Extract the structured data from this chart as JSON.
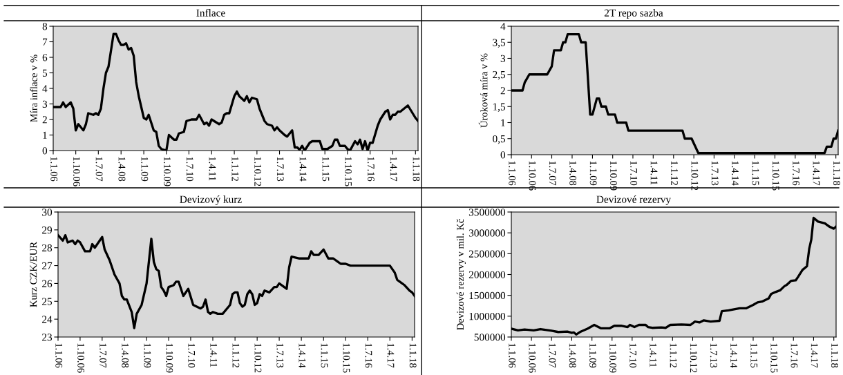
{
  "chart_data": [
    {
      "type": "line",
      "title": "Inflace",
      "ylabel": "Míra inflace v %",
      "xlim": [
        "2006-01",
        "2018-02"
      ],
      "xticks": [
        {
          "value": "2006-01",
          "label": "1.1.06"
        },
        {
          "value": "2006-10",
          "label": "1.10.06"
        },
        {
          "value": "2007-07",
          "label": "1.7.07"
        },
        {
          "value": "2008-04",
          "label": "1.4.08"
        },
        {
          "value": "2009-01",
          "label": "1.1.09"
        },
        {
          "value": "2009-10",
          "label": "1.10.09"
        },
        {
          "value": "2010-07",
          "label": "1.7.10"
        },
        {
          "value": "2011-04",
          "label": "1.4.11"
        },
        {
          "value": "2012-01",
          "label": "1.1.12"
        },
        {
          "value": "2012-10",
          "label": "1.10.12"
        },
        {
          "value": "2013-07",
          "label": "1.7.13"
        },
        {
          "value": "2014-04",
          "label": "1.4.14"
        },
        {
          "value": "2015-01",
          "label": "1.1.15"
        },
        {
          "value": "2015-10",
          "label": "1.10.15"
        },
        {
          "value": "2016-07",
          "label": "1.7.16"
        },
        {
          "value": "2017-04",
          "label": "1.4.17"
        },
        {
          "value": "2018-01",
          "label": "1.1.18"
        }
      ],
      "ylim": [
        0,
        8
      ],
      "yticks": [
        0,
        1,
        2,
        3,
        4,
        5,
        6,
        7,
        8
      ],
      "series": [
        {
          "color": "#000000",
          "x": [
            "2006-01",
            "2006-04",
            "2006-05",
            "2006-06",
            "2006-08",
            "2006-09",
            "2006-10",
            "2006-11",
            "2007-01",
            "2007-02",
            "2007-03",
            "2007-05",
            "2007-06",
            "2007-07",
            "2007-08",
            "2007-09",
            "2007-10",
            "2007-11",
            "2008-01",
            "2008-02",
            "2008-03",
            "2008-04",
            "2008-05",
            "2008-06",
            "2008-07",
            "2008-08",
            "2008-09",
            "2008-10",
            "2008-11",
            "2009-01",
            "2009-02",
            "2009-03",
            "2009-05",
            "2009-06",
            "2009-07",
            "2009-08",
            "2009-10",
            "2009-11",
            "2010-01",
            "2010-02",
            "2010-03",
            "2010-05",
            "2010-06",
            "2010-08",
            "2010-10",
            "2010-11",
            "2011-01",
            "2011-02",
            "2011-03",
            "2011-04",
            "2011-07",
            "2011-08",
            "2011-09",
            "2011-10",
            "2011-11",
            "2012-01",
            "2012-02",
            "2012-03",
            "2012-05",
            "2012-06",
            "2012-07",
            "2012-08",
            "2012-10",
            "2012-11",
            "2013-01",
            "2013-02",
            "2013-04",
            "2013-05",
            "2013-06",
            "2013-07",
            "2013-09",
            "2013-10",
            "2013-12",
            "2014-01",
            "2014-02",
            "2014-03",
            "2014-04",
            "2014-05",
            "2014-07",
            "2014-08",
            "2014-10",
            "2014-11",
            "2014-12",
            "2015-02",
            "2015-04",
            "2015-05",
            "2015-06",
            "2015-07",
            "2015-09",
            "2015-10",
            "2015-11",
            "2016-01",
            "2016-02",
            "2016-03",
            "2016-04",
            "2016-05",
            "2016-06",
            "2016-07",
            "2016-08",
            "2016-10",
            "2016-11",
            "2017-01",
            "2017-02",
            "2017-03",
            "2017-04",
            "2017-05",
            "2017-06",
            "2017-07",
            "2017-10",
            "2018-01",
            "2018-02"
          ],
          "values": [
            2.8,
            2.8,
            3.1,
            2.8,
            3.1,
            2.7,
            1.3,
            1.7,
            1.3,
            1.7,
            2.4,
            2.3,
            2.4,
            2.3,
            2.7,
            4.0,
            5.0,
            5.4,
            7.5,
            7.5,
            7.1,
            6.8,
            6.8,
            6.9,
            6.5,
            6.6,
            6.1,
            4.4,
            3.5,
            2.1,
            2.0,
            2.3,
            1.3,
            1.2,
            0.3,
            0.1,
            0.0,
            1.0,
            0.7,
            0.7,
            1.1,
            1.2,
            1.9,
            2.0,
            2.0,
            2.3,
            1.7,
            1.8,
            1.6,
            2.0,
            1.7,
            1.8,
            2.3,
            2.4,
            2.4,
            3.5,
            3.8,
            3.5,
            3.2,
            3.5,
            3.1,
            3.4,
            3.3,
            2.7,
            1.9,
            1.7,
            1.6,
            1.3,
            1.5,
            1.3,
            1.0,
            0.9,
            1.3,
            0.2,
            0.2,
            0.05,
            0.3,
            0.0,
            0.5,
            0.6,
            0.6,
            0.6,
            0.1,
            0.1,
            0.3,
            0.7,
            0.7,
            0.3,
            0.3,
            0.1,
            0.0,
            0.6,
            0.4,
            0.7,
            0.1,
            0.6,
            0.0,
            0.5,
            0.5,
            1.6,
            2.0,
            2.5,
            2.6,
            2.0,
            2.3,
            2.3,
            2.5,
            2.5,
            2.9,
            2.1,
            1.9
          ]
        }
      ]
    },
    {
      "type": "line",
      "title": "2T repo sazba",
      "ylabel": "Úroková míra v %",
      "xlim": [
        "2006-01",
        "2018-02"
      ],
      "xticks": [
        {
          "value": "2006-01",
          "label": "1.1.06"
        },
        {
          "value": "2006-10",
          "label": "1.10.06"
        },
        {
          "value": "2007-07",
          "label": "1.7.07"
        },
        {
          "value": "2008-04",
          "label": "1.4.08"
        },
        {
          "value": "2009-01",
          "label": "1.1.09"
        },
        {
          "value": "2009-10",
          "label": "1.10.09"
        },
        {
          "value": "2010-07",
          "label": "1.7.10"
        },
        {
          "value": "2011-04",
          "label": "1.4.11"
        },
        {
          "value": "2012-01",
          "label": "1.1.12"
        },
        {
          "value": "2012-10",
          "label": "1.10.12"
        },
        {
          "value": "2013-07",
          "label": "1.7.13"
        },
        {
          "value": "2014-04",
          "label": "1.4.14"
        },
        {
          "value": "2015-01",
          "label": "1.1.15"
        },
        {
          "value": "2015-10",
          "label": "1.10.15"
        },
        {
          "value": "2016-07",
          "label": "1.7.16"
        },
        {
          "value": "2017-04",
          "label": "1.4.17"
        },
        {
          "value": "2018-01",
          "label": "1.1.18"
        }
      ],
      "ylim": [
        0,
        4
      ],
      "yticks": [
        0,
        {
          "value": 0.5,
          "label": "0,5"
        },
        1,
        {
          "value": 1.5,
          "label": "1,5"
        },
        2,
        {
          "value": 2.5,
          "label": "2,5"
        },
        3,
        {
          "value": 3.5,
          "label": "3,5"
        },
        4
      ],
      "series": [
        {
          "color": "#000000",
          "x": [
            "2006-01",
            "2006-06",
            "2006-07",
            "2006-09",
            "2007-05",
            "2007-07",
            "2007-08",
            "2007-11",
            "2007-12",
            "2008-01",
            "2008-02",
            "2008-07",
            "2008-08",
            "2008-10",
            "2008-12",
            "2009-01",
            "2009-03",
            "2009-04",
            "2009-05",
            "2009-07",
            "2009-08",
            "2009-11",
            "2009-12",
            "2010-04",
            "2010-05",
            "2012-05",
            "2012-06",
            "2012-09",
            "2012-12",
            "2017-08",
            "2017-09",
            "2017-11",
            "2017-12",
            "2018-01",
            "2018-02"
          ],
          "values": [
            2.0,
            2.0,
            2.25,
            2.5,
            2.5,
            2.75,
            3.25,
            3.25,
            3.5,
            3.5,
            3.75,
            3.75,
            3.5,
            3.5,
            1.25,
            1.25,
            1.75,
            1.75,
            1.5,
            1.5,
            1.25,
            1.25,
            1.0,
            1.0,
            0.75,
            0.75,
            0.5,
            0.5,
            0.05,
            0.05,
            0.25,
            0.25,
            0.5,
            0.5,
            0.75
          ]
        }
      ]
    },
    {
      "type": "line",
      "title": "Devizový kurz",
      "ylabel": "Kurz CZK/EUR",
      "xlim": [
        "2006-01",
        "2018-02"
      ],
      "xticks": [
        {
          "value": "2006-01",
          "label": "1.1.06"
        },
        {
          "value": "2006-10",
          "label": "1.10.06"
        },
        {
          "value": "2007-07",
          "label": "1.7.07"
        },
        {
          "value": "2008-04",
          "label": "1.4.08"
        },
        {
          "value": "2009-01",
          "label": "1.1.09"
        },
        {
          "value": "2009-10",
          "label": "1.10.09"
        },
        {
          "value": "2010-07",
          "label": "1.7.10"
        },
        {
          "value": "2011-04",
          "label": "1.4.11"
        },
        {
          "value": "2012-01",
          "label": "1.1.12"
        },
        {
          "value": "2012-10",
          "label": "1.10.12"
        },
        {
          "value": "2013-07",
          "label": "1.7.13"
        },
        {
          "value": "2014-04",
          "label": "1.4.14"
        },
        {
          "value": "2015-01",
          "label": "1.1.15"
        },
        {
          "value": "2015-10",
          "label": "1.10.15"
        },
        {
          "value": "2016-07",
          "label": "1.7.16"
        },
        {
          "value": "2017-04",
          "label": "1.4.17"
        },
        {
          "value": "2018-01",
          "label": "1.1.18"
        }
      ],
      "ylim": [
        23,
        30
      ],
      "yticks": [
        23,
        24,
        25,
        26,
        27,
        28,
        29,
        30
      ],
      "series": [
        {
          "color": "#000000",
          "x": [
            "2006-01",
            "2006-03",
            "2006-04",
            "2006-05",
            "2006-07",
            "2006-08",
            "2006-09",
            "2006-10",
            "2006-12",
            "2007-02",
            "2007-03",
            "2007-04",
            "2007-07",
            "2007-08",
            "2007-10",
            "2007-12",
            "2008-02",
            "2008-03",
            "2008-04",
            "2008-05",
            "2008-07",
            "2008-08",
            "2008-09",
            "2008-11",
            "2009-01",
            "2009-03",
            "2009-04",
            "2009-05",
            "2009-06",
            "2009-07",
            "2009-08",
            "2009-09",
            "2009-10",
            "2009-12",
            "2010-01",
            "2010-02",
            "2010-04",
            "2010-06",
            "2010-08",
            "2010-11",
            "2010-12",
            "2011-01",
            "2011-02",
            "2011-03",
            "2011-04",
            "2011-06",
            "2011-08",
            "2011-11",
            "2011-12",
            "2012-01",
            "2012-02",
            "2012-03",
            "2012-04",
            "2012-05",
            "2012-06",
            "2012-07",
            "2012-08",
            "2012-09",
            "2012-10",
            "2012-11",
            "2012-12",
            "2013-01",
            "2013-03",
            "2013-05",
            "2013-06",
            "2013-07",
            "2013-09",
            "2013-10",
            "2013-11",
            "2013-12",
            "2014-03",
            "2014-07",
            "2014-08",
            "2014-09",
            "2014-11",
            "2015-01",
            "2015-03",
            "2015-05",
            "2015-07",
            "2015-08",
            "2015-10",
            "2015-12",
            "2016-07",
            "2016-09",
            "2016-11",
            "2017-04",
            "2017-06",
            "2017-07",
            "2017-08",
            "2017-10",
            "2017-12",
            "2018-01",
            "2018-02"
          ],
          "values": [
            28.7,
            28.4,
            28.7,
            28.3,
            28.4,
            28.2,
            28.4,
            28.3,
            27.8,
            27.8,
            28.2,
            28.0,
            28.6,
            27.9,
            27.3,
            26.5,
            26.0,
            25.3,
            25.1,
            25.1,
            24.4,
            23.5,
            24.3,
            24.8,
            26.0,
            28.5,
            27.2,
            26.8,
            26.7,
            25.8,
            25.6,
            25.3,
            25.8,
            25.9,
            26.1,
            26.1,
            25.3,
            25.7,
            24.8,
            24.6,
            24.7,
            25.1,
            24.4,
            24.3,
            24.4,
            24.3,
            24.3,
            24.8,
            25.4,
            25.5,
            25.5,
            24.9,
            24.7,
            24.8,
            25.4,
            25.6,
            25.4,
            24.8,
            24.9,
            25.4,
            25.3,
            25.6,
            25.5,
            25.8,
            25.8,
            26.0,
            25.8,
            25.7,
            26.9,
            27.5,
            27.4,
            27.4,
            27.8,
            27.6,
            27.6,
            27.9,
            27.4,
            27.4,
            27.2,
            27.1,
            27.1,
            27.0,
            27.0,
            27.0,
            27.0,
            27.0,
            26.6,
            26.2,
            26.1,
            25.9,
            25.6,
            25.5,
            25.3
          ]
        }
      ]
    },
    {
      "type": "line",
      "title": "Devizové rezervy",
      "ylabel": "Devizové rezervy v mil. Kč",
      "xlim": [
        "2006-01",
        "2018-02"
      ],
      "xticks": [
        {
          "value": "2006-01",
          "label": "1.1.06"
        },
        {
          "value": "2006-10",
          "label": "1.10.06"
        },
        {
          "value": "2007-07",
          "label": "1.7.07"
        },
        {
          "value": "2008-04",
          "label": "1.4.08"
        },
        {
          "value": "2009-01",
          "label": "1.1.09"
        },
        {
          "value": "2009-10",
          "label": "1.10.09"
        },
        {
          "value": "2010-07",
          "label": "1.7.10"
        },
        {
          "value": "2011-04",
          "label": "1.4.11"
        },
        {
          "value": "2012-01",
          "label": "1.1.12"
        },
        {
          "value": "2012-10",
          "label": "1.10.12"
        },
        {
          "value": "2013-07",
          "label": "1.7.13"
        },
        {
          "value": "2014-04",
          "label": "1.4.14"
        },
        {
          "value": "2015-01",
          "label": "1.1.15"
        },
        {
          "value": "2015-10",
          "label": "1.10.15"
        },
        {
          "value": "2016-07",
          "label": "1.7.16"
        },
        {
          "value": "2017-04",
          "label": "1.4.17"
        },
        {
          "value": "2018-01",
          "label": "1.1.18"
        }
      ],
      "ylim": [
        500000,
        3500000
      ],
      "yticks": [
        500000,
        1000000,
        1500000,
        2000000,
        2500000,
        3000000,
        3500000
      ],
      "series": [
        {
          "color": "#000000",
          "x": [
            "2006-01",
            "2006-04",
            "2006-07",
            "2006-11",
            "2007-02",
            "2007-07",
            "2007-10",
            "2008-02",
            "2008-04",
            "2008-05",
            "2008-06",
            "2008-08",
            "2008-11",
            "2009-02",
            "2009-05",
            "2009-09",
            "2009-11",
            "2010-02",
            "2010-05",
            "2010-06",
            "2010-08",
            "2010-10",
            "2011-01",
            "2011-02",
            "2011-04",
            "2011-08",
            "2011-10",
            "2011-12",
            "2012-05",
            "2012-09",
            "2012-11",
            "2013-01",
            "2013-03",
            "2013-06",
            "2013-10",
            "2013-11",
            "2014-02",
            "2014-07",
            "2014-10",
            "2015-01",
            "2015-03",
            "2015-05",
            "2015-08",
            "2015-09",
            "2015-11",
            "2016-01",
            "2016-03",
            "2016-04",
            "2016-06",
            "2016-08",
            "2016-09",
            "2016-11",
            "2017-01",
            "2017-02",
            "2017-03",
            "2017-04",
            "2017-06",
            "2017-09",
            "2017-11",
            "2018-01",
            "2018-02"
          ],
          "values": [
            700000,
            660000,
            680000,
            660000,
            690000,
            650000,
            620000,
            630000,
            600000,
            610000,
            560000,
            630000,
            700000,
            790000,
            710000,
            710000,
            770000,
            770000,
            740000,
            790000,
            740000,
            790000,
            790000,
            740000,
            720000,
            730000,
            720000,
            790000,
            800000,
            790000,
            870000,
            850000,
            900000,
            870000,
            890000,
            1120000,
            1140000,
            1190000,
            1190000,
            1270000,
            1330000,
            1350000,
            1430000,
            1530000,
            1580000,
            1620000,
            1720000,
            1750000,
            1850000,
            1860000,
            1940000,
            2110000,
            2200000,
            2620000,
            2840000,
            3360000,
            3270000,
            3230000,
            3150000,
            3100000,
            3150000
          ]
        }
      ]
    }
  ]
}
